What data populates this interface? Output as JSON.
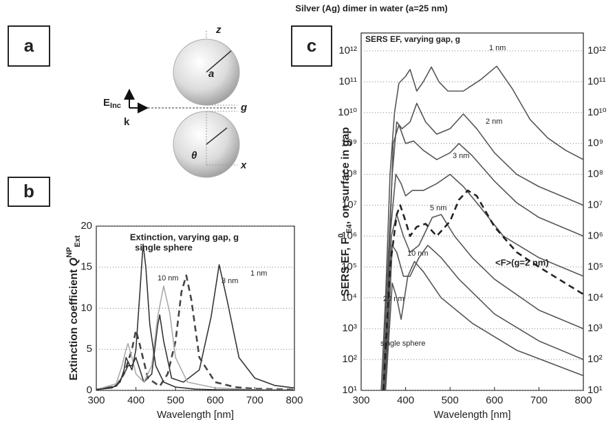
{
  "title": "Silver (Ag) dimer in water (a=25 nm)",
  "panels": [
    "a",
    "b",
    "c"
  ],
  "diagram": {
    "z": "z",
    "a": "a",
    "g": "g",
    "theta": "θ",
    "x": "x",
    "e": "E",
    "e_sub": "Inc",
    "k": "k"
  },
  "chart_data": [
    {
      "type": "line",
      "title": "Extinction, varying gap, g",
      "x_label": "Wavelength [nm]",
      "y_label": [
        "Extinction coefficient ",
        "Q",
        "NP",
        "Ext"
      ],
      "xlim": [
        300,
        800
      ],
      "xticks": [
        300,
        400,
        500,
        600,
        700,
        800
      ],
      "ylim": [
        0,
        20
      ],
      "yticks": [
        0,
        5,
        10,
        15,
        20
      ],
      "grid": true,
      "series": [
        {
          "name": "1 nm",
          "color": "#333333",
          "style": "solid",
          "x": [
            300,
            350,
            370,
            380,
            390,
            400,
            410,
            420,
            440,
            455,
            460,
            470,
            490,
            520,
            560,
            590,
            610,
            630,
            660,
            700,
            750,
            800
          ],
          "values": [
            0.1,
            0.5,
            2,
            3,
            3,
            4,
            2.5,
            1,
            2,
            8,
            9.2,
            6,
            1.5,
            1,
            2.5,
            9,
            15.3,
            11,
            4,
            1.5,
            0.6,
            0.3
          ]
        },
        {
          "name": "3 nm",
          "color": "#444444",
          "style": "dashed",
          "x": [
            300,
            350,
            370,
            380,
            390,
            400,
            410,
            430,
            460,
            480,
            500,
            515,
            527,
            540,
            560,
            600,
            650,
            700,
            800
          ],
          "values": [
            0.1,
            0.5,
            2,
            3.5,
            5,
            7.3,
            5.5,
            1.5,
            0.5,
            2,
            6,
            12,
            14,
            11,
            4,
            1,
            0.4,
            0.2,
            0.1
          ]
        },
        {
          "name": "10 nm",
          "color": "#aaaaaa",
          "style": "solid",
          "x": [
            300,
            350,
            365,
            375,
            380,
            390,
            400,
            420,
            440,
            455,
            470,
            485,
            500,
            530,
            600,
            700,
            800
          ],
          "values": [
            0.1,
            0.8,
            3,
            5,
            5.7,
            4,
            2,
            1,
            3,
            9,
            12.7,
            9.5,
            4,
            1,
            0.3,
            0.1,
            0.05
          ]
        },
        {
          "name": "single sphere",
          "color": "#333333",
          "style": "solid",
          "x": [
            300,
            340,
            360,
            370,
            375,
            380,
            390,
            400,
            410,
            418,
            425,
            435,
            450,
            470,
            500,
            550,
            600,
            700,
            800
          ],
          "values": [
            0.1,
            0.3,
            1,
            2.5,
            4,
            3.5,
            2.5,
            5,
            12,
            17.8,
            15,
            8,
            3,
            1,
            0.4,
            0.15,
            0.08,
            0.03,
            0.02
          ]
        }
      ]
    },
    {
      "type": "line",
      "title": "SERS EF, varying gap, g",
      "x_label": "Wavelength [nm]",
      "y_label": [
        "SERS EF, F",
        "0",
        "E4",
        ", on surface in gap"
      ],
      "xlim": [
        300,
        800
      ],
      "xticks": [
        300,
        400,
        500,
        600,
        700,
        800
      ],
      "ylim": [
        10,
        3800000000000.0
      ],
      "yscale": "log",
      "mirror_y": true,
      "grid": true,
      "yticks": [
        {
          "value": 10,
          "label": "10¹"
        },
        {
          "value": 100,
          "label": "10²"
        },
        {
          "value": 1000,
          "label": "10³"
        },
        {
          "value": 10000,
          "label": "10⁴"
        },
        {
          "value": 100000,
          "label": "10⁵"
        },
        {
          "value": 1000000,
          "label": "10⁶"
        },
        {
          "value": 10000000,
          "label": "10⁷"
        },
        {
          "value": 100000000,
          "label": "10⁸"
        },
        {
          "value": 1000000000,
          "label": "10⁹"
        },
        {
          "value": 10000000000,
          "label": "10¹⁰"
        },
        {
          "value": 100000000000,
          "label": "10¹¹"
        },
        {
          "value": 1000000000000,
          "label": "10¹²"
        }
      ],
      "series": [
        {
          "name": "1 nm",
          "color": "#555555",
          "style": "solid",
          "x": [
            345,
            355,
            365,
            375,
            385,
            400,
            410,
            425,
            440,
            458,
            475,
            495,
            530,
            570,
            605,
            640,
            680,
            720,
            760,
            800
          ],
          "values": [
            10,
            10000.0,
            100000000.0,
            10000000000.0,
            90000000000.0,
            150000000000.0,
            250000000000.0,
            50000000000.0,
            100000000000.0,
            300000000000.0,
            100000000000.0,
            50000000000.0,
            50000000000.0,
            120000000000.0,
            320000000000.0,
            60000000000.0,
            6000000000.0,
            1500000000.0,
            600000000.0,
            300000000.0
          ]
        },
        {
          "name": "2 nm",
          "color": "#555555",
          "style": "solid",
          "x": [
            348,
            360,
            370,
            380,
            392,
            410,
            425,
            445,
            470,
            500,
            530,
            560,
            600,
            650,
            700,
            750,
            800
          ],
          "values": [
            10,
            100000.0,
            100000000.0,
            5000000000.0,
            3000000000.0,
            5000000000.0,
            20000000000.0,
            5000000000.0,
            2000000000.0,
            3000000000.0,
            9000000000.0,
            3000000000.0,
            500000000.0,
            100000000.0,
            40000000.0,
            20000000.0,
            10000000.0
          ]
        },
        {
          "name": "3 nm",
          "color": "#555555",
          "style": "solid",
          "x": [
            350,
            360,
            372,
            385,
            400,
            418,
            440,
            470,
            500,
            520,
            550,
            600,
            650,
            700,
            800
          ],
          "values": [
            10,
            10000.0,
            1000000000.0,
            4000000000.0,
            1000000000.0,
            1200000000.0,
            600000000.0,
            300000000.0,
            500000000.0,
            1000000000.0,
            400000000.0,
            60000000.0,
            12000000.0,
            4000000.0,
            1000000.0
          ]
        },
        {
          "name": "5 nm",
          "color": "#555555",
          "style": "solid",
          "x": [
            352,
            365,
            378,
            390,
            400,
            415,
            440,
            470,
            500,
            530,
            570,
            620,
            700,
            800
          ],
          "values": [
            10,
            1000000.0,
            100000000.0,
            50000000.0,
            20000000.0,
            30000000.0,
            30000000.0,
            50000000.0,
            100000000.0,
            40000000.0,
            8000000.0,
            1000000.0,
            200000.0,
            50000.0
          ]
        },
        {
          "name": "10 nm",
          "color": "#555555",
          "style": "solid",
          "x": [
            353,
            368,
            380,
            395,
            410,
            430,
            460,
            480,
            510,
            550,
            600,
            700,
            800
          ],
          "values": [
            10,
            1000000.0,
            5000000.0,
            1000000.0,
            300000.0,
            500000.0,
            4000000.0,
            5000000.0,
            1000000.0,
            200000.0,
            40000.0,
            4000.0,
            1000.0
          ]
        },
        {
          "name": "20 nm",
          "color": "#555555",
          "style": "solid",
          "x": [
            355,
            370,
            380,
            395,
            410,
            430,
            450,
            480,
            520,
            600,
            700,
            800
          ],
          "values": [
            10,
            500000.0,
            300000.0,
            50000.0,
            50000.0,
            200000.0,
            500000.0,
            200000.0,
            40000.0,
            3000.0,
            400,
            100
          ]
        },
        {
          "name": "single sphere",
          "color": "#555555",
          "style": "solid",
          "x": [
            355,
            370,
            380,
            390,
            405,
            420,
            440,
            480,
            550,
            650,
            800
          ],
          "values": [
            10,
            30000.0,
            10000.0,
            2000.0,
            50000.0,
            150000.0,
            70000.0,
            10000.0,
            1500,
            200,
            30
          ]
        },
        {
          "name": "<F>(g=2 nm)",
          "color": "#222222",
          "style": "dashed",
          "x": [
            350,
            365,
            380,
            388,
            400,
            410,
            425,
            445,
            470,
            500,
            520,
            540,
            560,
            600,
            650,
            700,
            800
          ],
          "values": [
            10,
            100000.0,
            5000000.0,
            10000000.0,
            3000000.0,
            1000000.0,
            2000000.0,
            2500000.0,
            1000000.0,
            3000000.0,
            15000000.0,
            30000000.0,
            20000000.0,
            2000000.0,
            300000.0,
            100000.0,
            13000
          ]
        }
      ]
    }
  ]
}
